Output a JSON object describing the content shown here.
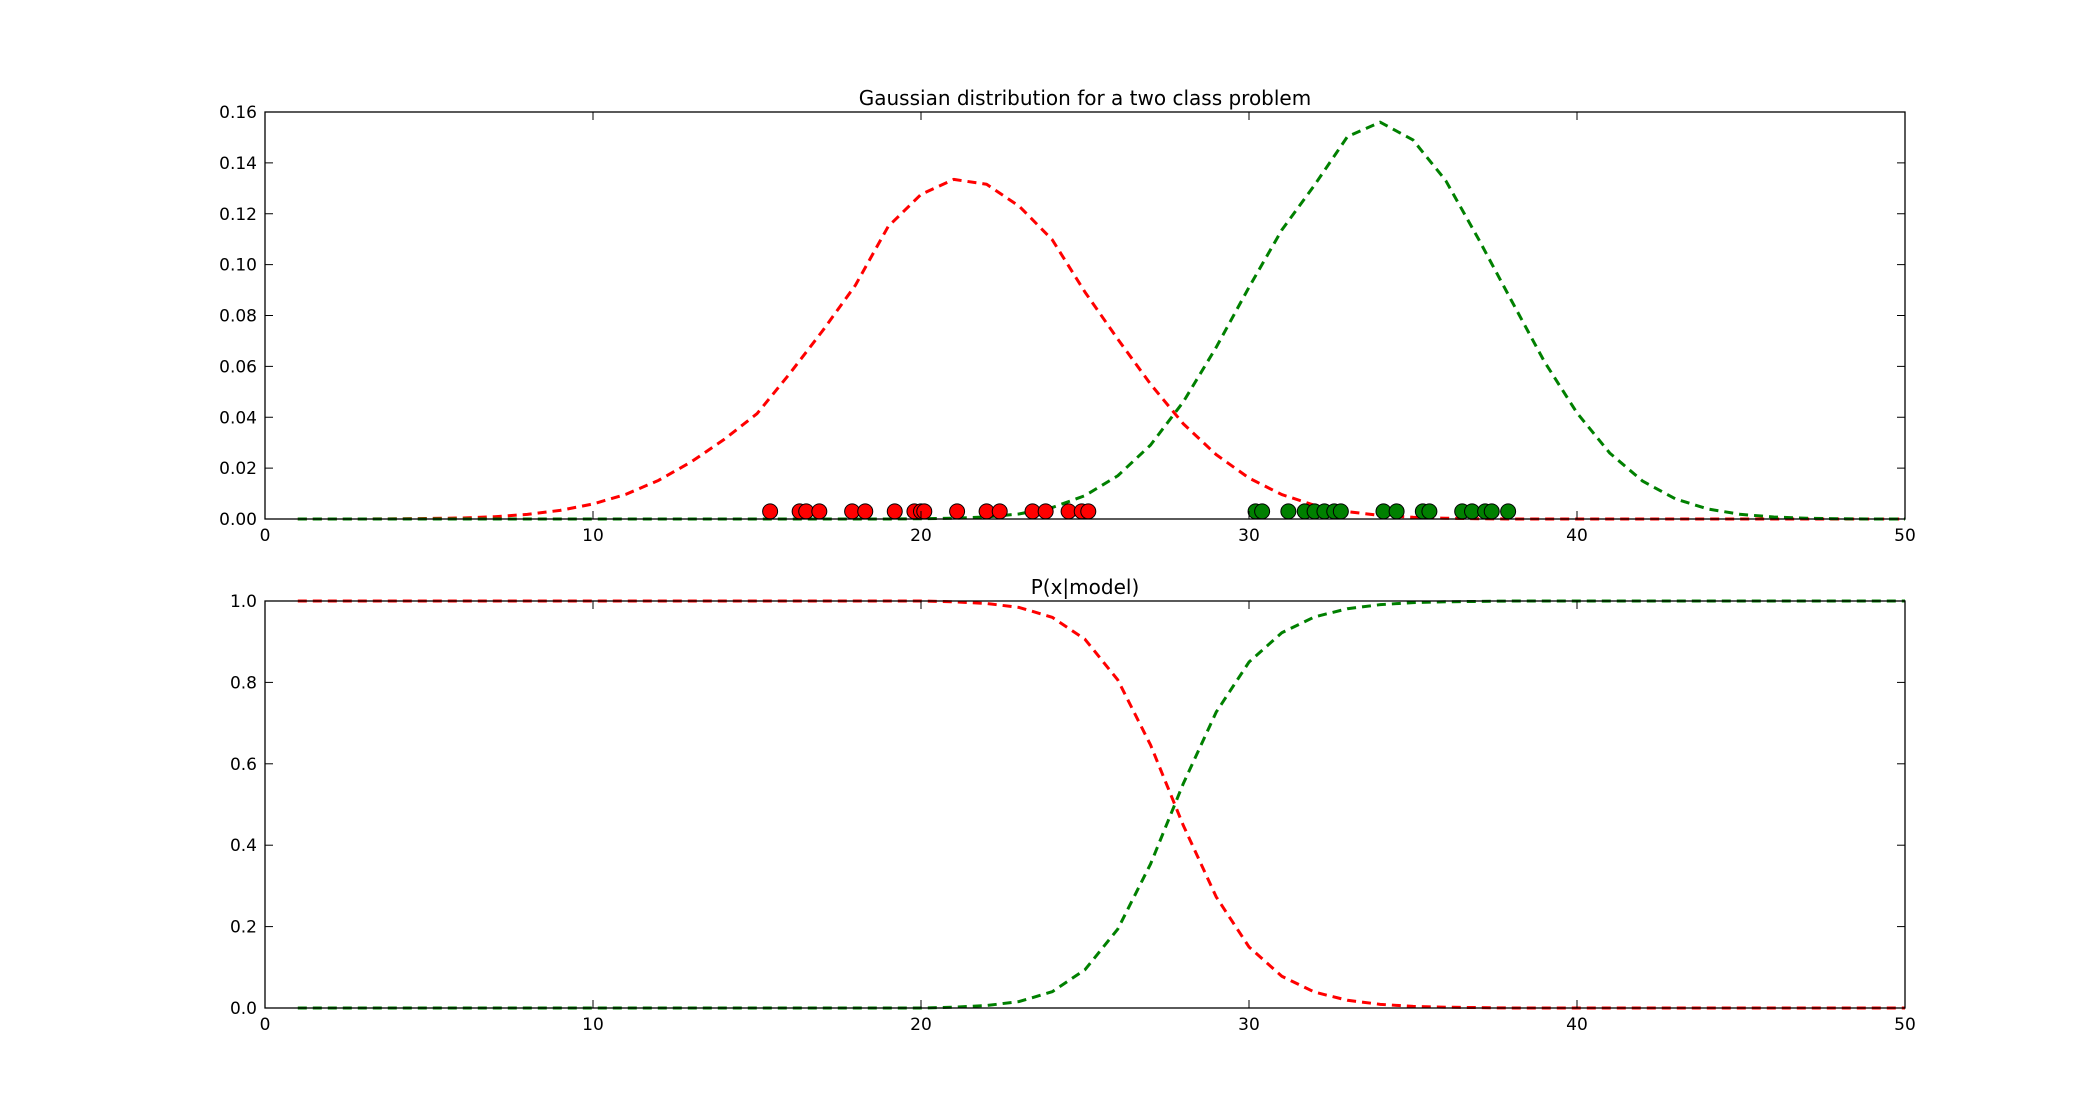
{
  "chart_data": [
    {
      "type": "line",
      "title": "Gaussian distribution for a two class problem",
      "xlabel": "",
      "ylabel": "",
      "xlim": [
        0,
        50
      ],
      "ylim": [
        0,
        0.16
      ],
      "xticks": [
        0,
        10,
        20,
        30,
        40,
        50
      ],
      "xtick_labels": [
        "0",
        "10",
        "20",
        "30",
        "40",
        "50"
      ],
      "yticks": [
        0,
        0.02,
        0.04,
        0.06,
        0.08,
        0.1,
        0.12,
        0.14,
        0.16
      ],
      "ytick_labels": [
        "0.00",
        "0.02",
        "0.04",
        "0.06",
        "0.08",
        "0.10",
        "0.12",
        "0.14",
        "0.16"
      ],
      "grid": false,
      "line_style": "dashed",
      "series": [
        {
          "color": "#ff0000",
          "x": [
            1,
            2,
            3,
            4,
            5,
            6,
            7,
            8,
            9,
            10,
            11,
            12,
            13,
            14,
            15,
            16,
            17,
            18,
            19,
            20,
            21,
            22,
            23,
            24,
            25,
            26,
            27,
            28,
            29,
            30,
            31,
            32,
            33,
            34,
            35,
            36,
            37,
            38,
            39,
            40,
            41,
            42,
            43,
            44,
            45,
            46,
            47,
            48,
            49,
            50
          ],
          "y": [
            0,
            0,
            0,
            0.0001,
            0.0002,
            0.0004,
            0.0009,
            0.0018,
            0.0034,
            0.0059,
            0.0097,
            0.0152,
            0.0225,
            0.0313,
            0.0414,
            0.0572,
            0.074,
            0.0919,
            0.115,
            0.1276,
            0.1335,
            0.1316,
            0.1229,
            0.1098,
            0.0892,
            0.0707,
            0.053,
            0.0374,
            0.0253,
            0.0161,
            0.0096,
            0.0054,
            0.0029,
            0.0014,
            0.0007,
            0.0003,
            0.0001,
            0,
            0,
            0,
            0,
            0,
            0,
            0,
            0,
            0,
            0,
            0,
            0,
            0
          ]
        },
        {
          "color": "#008000",
          "x": [
            1,
            2,
            3,
            4,
            5,
            6,
            7,
            8,
            9,
            10,
            11,
            12,
            13,
            14,
            15,
            16,
            17,
            18,
            19,
            20,
            21,
            22,
            23,
            24,
            25,
            26,
            27,
            28,
            29,
            30,
            31,
            32,
            33,
            34,
            35,
            36,
            37,
            38,
            39,
            40,
            41,
            42,
            43,
            44,
            45,
            46,
            47,
            48,
            49,
            50
          ],
          "y": [
            0,
            0,
            0,
            0,
            0,
            0,
            0,
            0,
            0,
            0,
            0,
            0,
            0,
            0,
            0,
            0,
            0,
            0,
            0,
            0.0001,
            0.0003,
            0.0008,
            0.002,
            0.0045,
            0.0092,
            0.017,
            0.0291,
            0.0461,
            0.0675,
            0.0911,
            0.1136,
            0.1313,
            0.1503,
            0.156,
            0.149,
            0.133,
            0.11,
            0.0859,
            0.062,
            0.0417,
            0.0259,
            0.0149,
            0.0079,
            0.0039,
            0.0018,
            0.0008,
            0.0003,
            0.0001,
            0,
            0
          ]
        }
      ],
      "scatter": [
        {
          "color": "#ff0000",
          "x": [
            15.4,
            16.3,
            16.5,
            16.9,
            17.9,
            18.3,
            19.2,
            19.8,
            20.0,
            20.1,
            21.1,
            22.0,
            22.4,
            23.4,
            23.8,
            24.5,
            24.9,
            25.1
          ],
          "y": [
            0.003,
            0.003,
            0.003,
            0.003,
            0.003,
            0.003,
            0.003,
            0.003,
            0.003,
            0.003,
            0.003,
            0.003,
            0.003,
            0.003,
            0.003,
            0.003,
            0.003,
            0.003
          ]
        },
        {
          "color": "#008000",
          "x": [
            30.2,
            30.4,
            31.2,
            31.7,
            32.0,
            32.3,
            32.6,
            32.8,
            34.1,
            34.5,
            35.3,
            35.5,
            36.5,
            36.8,
            37.2,
            37.4,
            37.9
          ],
          "y": [
            0.003,
            0.003,
            0.003,
            0.003,
            0.003,
            0.003,
            0.003,
            0.003,
            0.003,
            0.003,
            0.003,
            0.003,
            0.003,
            0.003,
            0.003,
            0.003,
            0.003
          ]
        }
      ]
    },
    {
      "type": "line",
      "title": "P(x|model)",
      "xlabel": "",
      "ylabel": "",
      "xlim": [
        0,
        50
      ],
      "ylim": [
        0,
        1
      ],
      "xticks": [
        0,
        10,
        20,
        30,
        40,
        50
      ],
      "xtick_labels": [
        "0",
        "10",
        "20",
        "30",
        "40",
        "50"
      ],
      "yticks": [
        0,
        0.2,
        0.4,
        0.6,
        0.8,
        1.0
      ],
      "ytick_labels": [
        "0.0",
        "0.2",
        "0.4",
        "0.6",
        "0.8",
        "1.0"
      ],
      "grid": false,
      "line_style": "dashed",
      "series": [
        {
          "color": "#ff0000",
          "x": [
            1,
            2,
            3,
            4,
            5,
            6,
            7,
            8,
            9,
            10,
            11,
            12,
            13,
            14,
            15,
            16,
            17,
            18,
            19,
            20,
            21,
            22,
            23,
            24,
            25,
            26,
            27,
            28,
            29,
            30,
            31,
            32,
            33,
            34,
            35,
            36,
            37,
            38,
            39,
            40,
            41,
            42,
            43,
            44,
            45,
            46,
            47,
            48,
            49,
            50
          ],
          "y": [
            1,
            1,
            1,
            1,
            1,
            1,
            1,
            1,
            1,
            1,
            1,
            1,
            1,
            1,
            1,
            1,
            1,
            1,
            1,
            1,
            0.998,
            0.994,
            0.984,
            0.96,
            0.906,
            0.806,
            0.646,
            0.448,
            0.273,
            0.15,
            0.078,
            0.039,
            0.019,
            0.009,
            0.004,
            0.002,
            0.001,
            0,
            0,
            0,
            0,
            0,
            0,
            0,
            0,
            0,
            0,
            0,
            0,
            0
          ]
        },
        {
          "color": "#008000",
          "x": [
            1,
            2,
            3,
            4,
            5,
            6,
            7,
            8,
            9,
            10,
            11,
            12,
            13,
            14,
            15,
            16,
            17,
            18,
            19,
            20,
            21,
            22,
            23,
            24,
            25,
            26,
            27,
            28,
            29,
            30,
            31,
            32,
            33,
            34,
            35,
            36,
            37,
            38,
            39,
            40,
            41,
            42,
            43,
            44,
            45,
            46,
            47,
            48,
            49,
            50
          ],
          "y": [
            0,
            0,
            0,
            0,
            0,
            0,
            0,
            0,
            0,
            0,
            0,
            0,
            0,
            0,
            0,
            0,
            0,
            0,
            0,
            0,
            0.002,
            0.006,
            0.016,
            0.04,
            0.094,
            0.194,
            0.354,
            0.552,
            0.727,
            0.85,
            0.922,
            0.961,
            0.981,
            0.991,
            0.996,
            0.998,
            0.999,
            1,
            1,
            1,
            1,
            1,
            1,
            1,
            1,
            1,
            1,
            1,
            1,
            1
          ]
        }
      ]
    }
  ]
}
